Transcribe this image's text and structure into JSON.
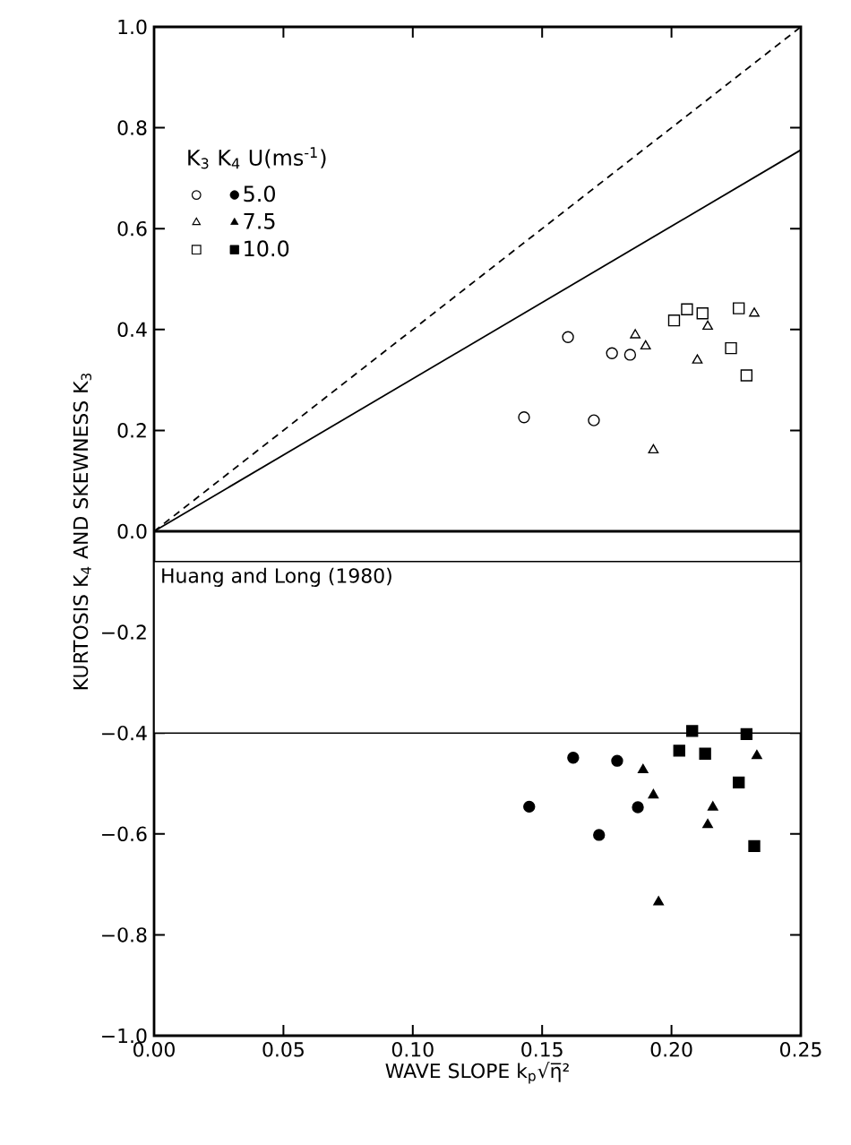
{
  "chart_data": {
    "type": "scatter",
    "xlabel": "WAVE SLOPE  k$_{p}$√η̅²",
    "ylabel": "KURTOSIS  K$_{4}$   AND   SKEWNESS  K$_{3}$",
    "legend_title": "K$_{3}$  K$_{4}$  U(ms$^{-1}$)",
    "legend": "top left",
    "xlim": [
      0,
      0.25
    ],
    "ylim": [
      -1.0,
      1.0
    ],
    "xticks": [
      {
        "value": 0,
        "label": "0.00"
      },
      {
        "value": 0.05,
        "label": "0.05"
      },
      {
        "value": 0.1,
        "label": "0.10"
      },
      {
        "value": 0.15,
        "label": "0.15"
      },
      {
        "value": 0.2,
        "label": "0.20"
      },
      {
        "value": 0.25,
        "label": "0.25"
      }
    ],
    "yticks": [
      {
        "value": -1.0,
        "label": "−1.0"
      },
      {
        "value": -0.8,
        "label": "−0.8"
      },
      {
        "value": -0.6,
        "label": "−0.6"
      },
      {
        "value": -0.4,
        "label": "−0.4"
      },
      {
        "value": -0.2,
        "label": "−0.2"
      },
      {
        "value": 0,
        "label": "0.0"
      },
      {
        "value": 0.2,
        "label": "0.2"
      },
      {
        "value": 0.4,
        "label": "0.4"
      },
      {
        "value": 0.6,
        "label": "0.6"
      },
      {
        "value": 0.8,
        "label": "0.8"
      },
      {
        "value": 1.0,
        "label": "1.0"
      }
    ],
    "ref_lines": [
      {
        "axis": "y",
        "value": 0
      }
    ],
    "bands": [
      {
        "axis": "y",
        "from": -0.06,
        "to": -0.4,
        "label": "Huang and Long (1980)",
        "color": "#ffffff"
      }
    ],
    "series": [
      {
        "type": "line",
        "line_style": "dashed",
        "color": "#000000",
        "x": [
          0,
          0.25
        ],
        "values": [
          0,
          1.0
        ]
      },
      {
        "type": "line",
        "line_style": "solid",
        "color": "#000000",
        "x": [
          0,
          0.25
        ],
        "values": [
          0,
          0.756
        ]
      },
      {
        "marker": "circle",
        "color": "#000000",
        "x": [
          0.16,
          0.177,
          0.184,
          0.17,
          0.143
        ],
        "values": [
          0.385,
          0.353,
          0.35,
          0.22,
          0.226
        ]
      },
      {
        "marker": "triangle",
        "color": "#000000",
        "x": [
          0.186,
          0.19,
          0.214,
          0.232,
          0.21,
          0.193
        ],
        "values": [
          0.389,
          0.367,
          0.406,
          0.432,
          0.339,
          0.161
        ]
      },
      {
        "marker": "square",
        "color": "#000000",
        "x": [
          0.201,
          0.206,
          0.212,
          0.226,
          0.223,
          0.229
        ],
        "values": [
          0.418,
          0.44,
          0.432,
          0.442,
          0.363,
          0.309
        ]
      },
      {
        "name": "5.0",
        "marker": "circle",
        "color": "#000000",
        "x": [
          0.162,
          0.179,
          0.187,
          0.172,
          0.145
        ],
        "values": [
          -0.449,
          -0.455,
          -0.547,
          -0.602,
          -0.546
        ]
      },
      {
        "name": "7.5",
        "marker": "triangle",
        "color": "#000000",
        "x": [
          0.189,
          0.193,
          0.233,
          0.216,
          0.214,
          0.195
        ],
        "values": [
          -0.473,
          -0.523,
          -0.445,
          -0.547,
          -0.582,
          -0.735
        ]
      },
      {
        "name": "10.0",
        "marker": "square",
        "color": "#000000",
        "x": [
          0.208,
          0.203,
          0.213,
          0.229,
          0.226,
          0.232
        ],
        "values": [
          -0.396,
          -0.435,
          -0.441,
          -0.402,
          -0.498,
          -0.624
        ]
      }
    ]
  }
}
